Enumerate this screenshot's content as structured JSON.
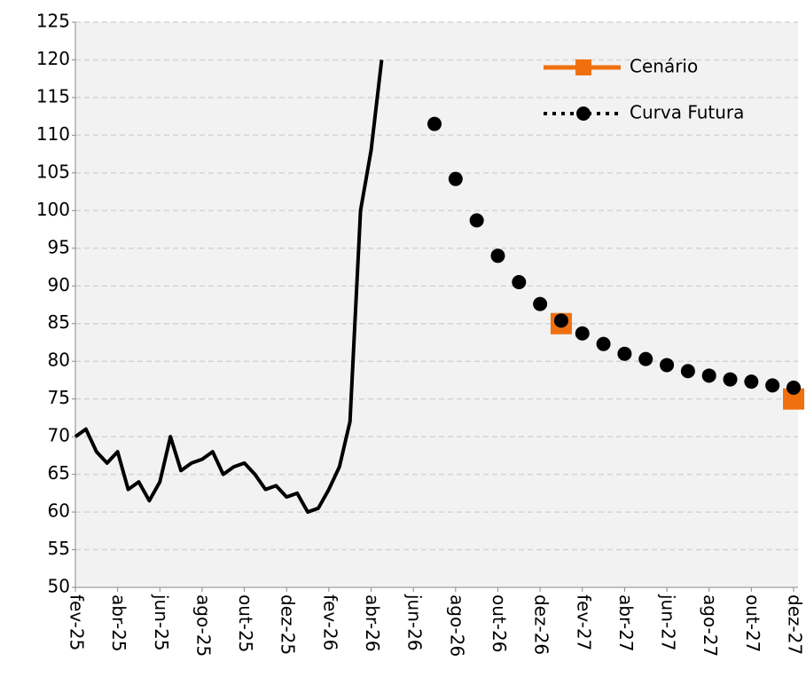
{
  "chart_data": {
    "type": "line",
    "categories": [
      "fev-25",
      null,
      null,
      null,
      "abr-25",
      null,
      null,
      null,
      "jun-25",
      null,
      null,
      null,
      "ago-25",
      null,
      null,
      null,
      "out-25",
      null,
      null,
      null,
      "dez-25",
      null,
      null,
      null,
      "fev-26",
      null,
      null,
      null,
      "abr-26",
      null,
      null,
      null,
      "jun-26",
      null,
      null,
      null,
      "ago-26",
      null,
      null,
      null,
      "out-26",
      null,
      null,
      null,
      "dez-26",
      null,
      null,
      null,
      "fev-27",
      null,
      null,
      null,
      "abr-27",
      null,
      null,
      null,
      "jun-27",
      null,
      null,
      null,
      "ago-27",
      null,
      null,
      null,
      "out-27",
      null,
      null,
      null,
      "dez-27"
    ],
    "series": [
      {
        "name": "Cenário",
        "color": "#f07010",
        "style": "markers",
        "marker": "square",
        "values": [
          null,
          null,
          null,
          null,
          null,
          null,
          null,
          null,
          null,
          null,
          null,
          null,
          null,
          null,
          null,
          null,
          null,
          null,
          null,
          null,
          null,
          null,
          null,
          null,
          null,
          null,
          null,
          null,
          null,
          null,
          null,
          null,
          null,
          null,
          null,
          null,
          null,
          null,
          null,
          null,
          null,
          null,
          null,
          null,
          null,
          null,
          85,
          null,
          null,
          null,
          null,
          null,
          null,
          null,
          null,
          null,
          null,
          null,
          null,
          null,
          null,
          null,
          null,
          null,
          null,
          null,
          null,
          null,
          75
        ]
      },
      {
        "name": "Curva Futura",
        "color": "#000000",
        "style": "markers",
        "marker": "circle",
        "values": [
          null,
          null,
          null,
          null,
          null,
          null,
          null,
          null,
          null,
          null,
          null,
          null,
          null,
          null,
          null,
          null,
          null,
          null,
          null,
          null,
          null,
          null,
          null,
          null,
          null,
          null,
          null,
          null,
          null,
          null,
          null,
          null,
          null,
          null,
          111.5,
          null,
          104.2,
          null,
          98.7,
          null,
          94,
          null,
          90.5,
          null,
          87.6,
          null,
          85.4,
          null,
          83.7,
          null,
          82.3,
          null,
          81,
          null,
          80.3,
          null,
          79.5,
          null,
          78.7,
          null,
          78.1,
          null,
          77.6,
          null,
          77.3,
          null,
          76.8,
          null,
          76.5
        ]
      },
      {
        "color": "#000000",
        "style": "line",
        "values": [
          70,
          71,
          68,
          66.5,
          68,
          63,
          64,
          61.5,
          64,
          70,
          65.5,
          66.5,
          67,
          68,
          65,
          66,
          66.5,
          65,
          63,
          63.5,
          62,
          62.5,
          60,
          60.5,
          63,
          66,
          72,
          100,
          108,
          120,
          null,
          null,
          null,
          null,
          null,
          null,
          null,
          null,
          null,
          null,
          null,
          null,
          null,
          null,
          null,
          null,
          null,
          null,
          null,
          null,
          null,
          null,
          null,
          null,
          null,
          null,
          null,
          null,
          null,
          null,
          null,
          null,
          null,
          null,
          null,
          null,
          null,
          null,
          null
        ]
      }
    ],
    "ylim": [
      50,
      125
    ],
    "yticks": [
      50,
      55,
      60,
      65,
      70,
      75,
      80,
      85,
      90,
      95,
      100,
      105,
      110,
      115,
      120,
      125
    ],
    "grid": true,
    "legend": "top-right"
  }
}
